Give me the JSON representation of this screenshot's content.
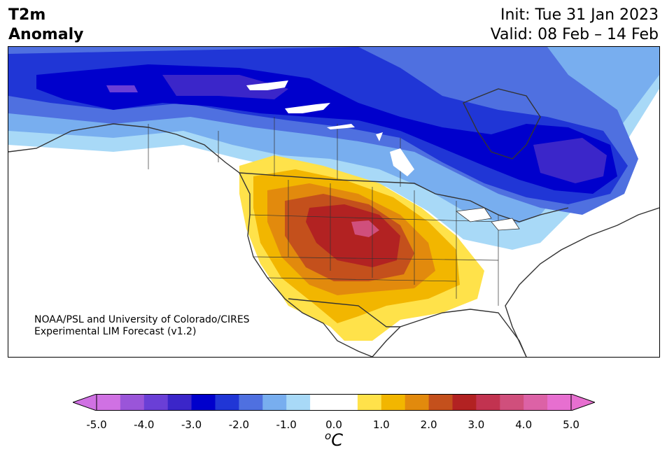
{
  "header": {
    "title_line1": "T2m",
    "title_line2": "Anomaly",
    "init": "Init: Tue 31 Jan 2023",
    "valid": "Valid: 08 Feb – 14 Feb"
  },
  "credit": {
    "line1": "NOAA/PSL and University of Colorado/CIRES",
    "line2": "Experimental LIM Forecast (v1.2)"
  },
  "colorbar": {
    "unit_base": "C",
    "unit_sup": "o",
    "ticks": [
      "-5.0",
      "-4.0",
      "-3.0",
      "-2.0",
      "-1.0",
      "0.0",
      "1.0",
      "2.0",
      "3.0",
      "4.0",
      "5.0"
    ],
    "colors": [
      "#d071e3",
      "#9a55d9",
      "#6a3fd6",
      "#3b26c9",
      "#0000cc",
      "#2036d6",
      "#4f70e0",
      "#78aeef",
      "#a8d9f7",
      "#ffffff",
      "#ffffff",
      "#ffe24a",
      "#f2b600",
      "#e28a0d",
      "#c4501c",
      "#b22222",
      "#c23350",
      "#d04f7c",
      "#dc62a6",
      "#e76fd0"
    ],
    "under_color": "#d071e3",
    "over_color": "#e76fd0"
  },
  "map_data": {
    "variable": "2m temperature anomaly",
    "region": "North America",
    "projection": "Lambert conformal",
    "features": [
      "coastlines",
      "country borders",
      "US states",
      "Canadian provinces"
    ]
  }
}
